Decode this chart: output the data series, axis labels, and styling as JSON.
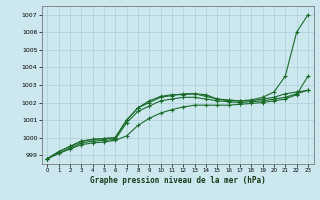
{
  "xlabel": "Graphe pression niveau de la mer (hPa)",
  "xlim": [
    -0.5,
    23.5
  ],
  "ylim": [
    998.5,
    1007.5
  ],
  "yticks": [
    999,
    1000,
    1001,
    1002,
    1003,
    1004,
    1005,
    1006,
    1007
  ],
  "xticks": [
    0,
    1,
    2,
    3,
    4,
    5,
    6,
    7,
    8,
    9,
    10,
    11,
    12,
    13,
    14,
    15,
    16,
    17,
    18,
    19,
    20,
    21,
    22,
    23
  ],
  "bg_color": "#cce8ee",
  "grid_color": "#aacdd6",
  "line_color": "#1a6b2a",
  "line1": [
    998.8,
    999.2,
    999.5,
    999.8,
    999.9,
    999.95,
    1000.0,
    1001.0,
    1001.7,
    1002.0,
    1002.3,
    1002.4,
    1002.5,
    1002.5,
    1002.45,
    1002.2,
    1002.15,
    1002.1,
    1002.15,
    1002.3,
    1002.6,
    1003.5,
    1006.0,
    1007.0
  ],
  "line2": [
    998.8,
    999.2,
    999.5,
    999.8,
    999.9,
    999.95,
    1000.0,
    1001.0,
    1001.7,
    1002.1,
    1002.35,
    1002.45,
    1002.45,
    1002.5,
    1002.35,
    1002.2,
    1002.1,
    1002.1,
    1002.1,
    1002.2,
    1002.3,
    1002.5,
    1002.6,
    1002.7
  ],
  "line3": [
    998.8,
    999.1,
    999.4,
    999.7,
    999.8,
    999.85,
    999.9,
    1000.85,
    1001.5,
    1001.8,
    1002.1,
    1002.2,
    1002.3,
    1002.3,
    1002.2,
    1002.1,
    1002.05,
    1002.0,
    1002.05,
    1002.1,
    1002.2,
    1002.3,
    1002.5,
    1002.7
  ],
  "line4": [
    998.8,
    999.1,
    999.35,
    999.6,
    999.7,
    999.75,
    999.85,
    1000.1,
    1000.7,
    1001.1,
    1001.4,
    1001.6,
    1001.75,
    1001.85,
    1001.85,
    1001.85,
    1001.85,
    1001.9,
    1001.95,
    1002.0,
    1002.1,
    1002.2,
    1002.45,
    1003.5
  ]
}
